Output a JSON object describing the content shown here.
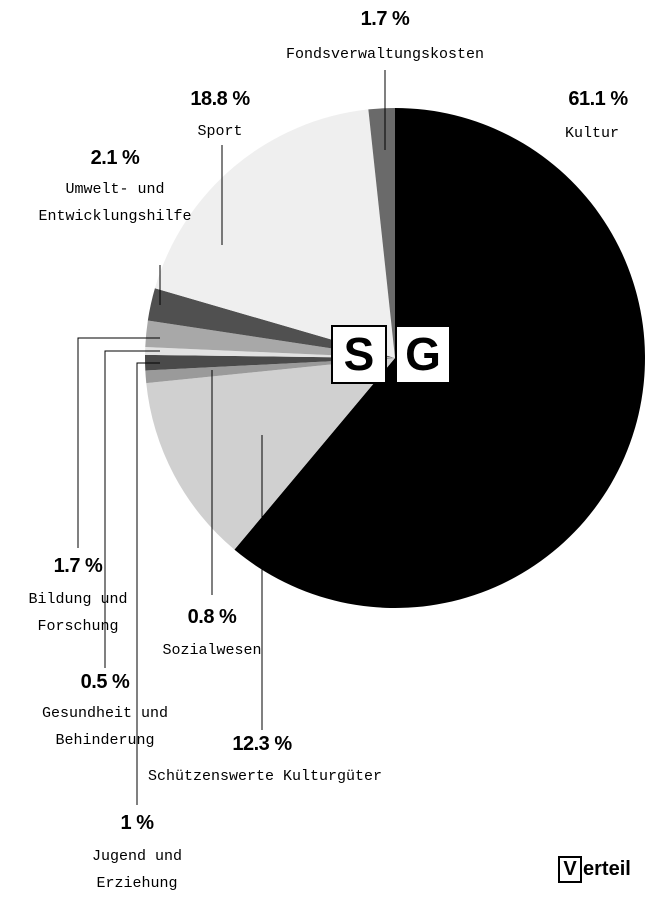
{
  "chart_data": {
    "type": "pie",
    "categories": [
      "Kultur",
      "Schützenswerte Kulturgüter",
      "Sozialwesen",
      "Jugend und\nErziehung",
      "Gesundheit und\nBehinderung",
      "Bildung und\nForschung",
      "Umwelt- und\nEntwicklungshilfe",
      "Sport",
      "Fondsverwaltungskosten"
    ],
    "values": [
      61.1,
      12.3,
      0.8,
      1,
      0.5,
      1.7,
      2.1,
      18.8,
      1.7
    ],
    "value_labels": [
      "61.1 %",
      "12.3 %",
      "0.8 %",
      "1 %",
      "0.5 %",
      "1.7 %",
      "2.1 %",
      "18.8 %",
      "1.7 %"
    ],
    "colors": [
      "#000000",
      "#d0d0d0",
      "#9a9a9a",
      "#4a4a4a",
      "#e2e2e2",
      "#a8a8a8",
      "#505050",
      "#efefef",
      "#6a6a6a"
    ],
    "logo": [
      "S",
      "G"
    ],
    "footer": [
      "V",
      "erteil"
    ]
  }
}
